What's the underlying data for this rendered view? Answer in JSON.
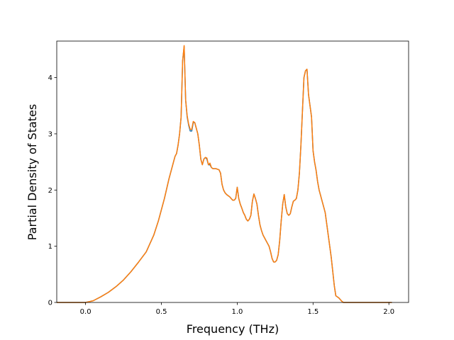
{
  "chart_data": {
    "type": "line",
    "title": "",
    "xlabel": "Frequency (THz)",
    "ylabel": "Partial Density of States",
    "xlim": [
      -0.19,
      2.13
    ],
    "ylim": [
      0,
      4.65
    ],
    "xticks": [
      0.0,
      0.5,
      1.0,
      1.5,
      2.0
    ],
    "xtick_labels": [
      "0.0",
      "0.5",
      "1.0",
      "1.5",
      "2.0"
    ],
    "yticks": [
      0,
      1,
      2,
      3,
      4
    ],
    "ytick_labels": [
      "0",
      "1",
      "2",
      "3",
      "4"
    ],
    "grid": false,
    "legend": "none",
    "series": [
      {
        "color": "#1f77b4",
        "x": [
          -0.19,
          -0.1,
          0.0,
          0.05,
          0.1,
          0.15,
          0.2,
          0.25,
          0.3,
          0.35,
          0.4,
          0.45,
          0.48,
          0.5,
          0.52,
          0.55,
          0.57,
          0.58,
          0.59,
          0.6,
          0.61,
          0.62,
          0.63,
          0.64,
          0.65,
          0.66,
          0.67,
          0.68,
          0.69,
          0.7,
          0.71,
          0.72,
          0.73,
          0.74,
          0.75,
          0.76,
          0.77,
          0.78,
          0.79,
          0.8,
          0.81,
          0.82,
          0.83,
          0.84,
          0.85,
          0.86,
          0.87,
          0.88,
          0.89,
          0.9,
          0.91,
          0.92,
          0.93,
          0.94,
          0.95,
          0.96,
          0.97,
          0.98,
          0.99,
          1.0,
          1.01,
          1.02,
          1.03,
          1.04,
          1.05,
          1.06,
          1.07,
          1.08,
          1.09,
          1.1,
          1.11,
          1.12,
          1.13,
          1.14,
          1.15,
          1.16,
          1.17,
          1.18,
          1.19,
          1.2,
          1.21,
          1.22,
          1.23,
          1.24,
          1.25,
          1.26,
          1.27,
          1.28,
          1.29,
          1.3,
          1.31,
          1.32,
          1.33,
          1.34,
          1.35,
          1.36,
          1.37,
          1.38,
          1.39,
          1.4,
          1.41,
          1.42,
          1.43,
          1.44,
          1.45,
          1.46,
          1.47,
          1.48,
          1.49,
          1.5,
          1.51,
          1.52,
          1.53,
          1.54,
          1.55,
          1.56,
          1.57,
          1.58,
          1.59,
          1.6,
          1.61,
          1.62,
          1.63,
          1.64,
          1.65,
          1.66,
          1.67,
          1.68,
          1.69,
          1.7,
          1.71,
          1.72,
          1.73,
          1.74,
          1.75,
          1.76,
          1.77,
          1.78,
          1.79,
          1.8,
          1.81,
          1.82,
          1.83,
          1.85,
          1.9,
          2.0,
          2.02
        ],
        "y": [
          0,
          0,
          0,
          0.03,
          0.1,
          0.18,
          0.28,
          0.4,
          0.55,
          0.72,
          0.9,
          1.2,
          1.45,
          1.65,
          1.85,
          2.2,
          2.4,
          2.5,
          2.6,
          2.65,
          2.8,
          3.0,
          3.3,
          4.3,
          4.55,
          3.6,
          3.3,
          3.15,
          3.05,
          3.05,
          3.2,
          3.2,
          3.1,
          3.0,
          2.8,
          2.55,
          2.45,
          2.55,
          2.58,
          2.55,
          2.45,
          2.45,
          2.4,
          2.38,
          2.38,
          2.38,
          2.37,
          2.36,
          2.3,
          2.1,
          2.0,
          1.95,
          1.92,
          1.9,
          1.88,
          1.85,
          1.82,
          1.82,
          1.85,
          2.05,
          1.85,
          1.75,
          1.68,
          1.6,
          1.55,
          1.48,
          1.45,
          1.48,
          1.55,
          1.8,
          1.93,
          1.85,
          1.75,
          1.55,
          1.38,
          1.28,
          1.2,
          1.15,
          1.1,
          1.05,
          1.0,
          0.9,
          0.78,
          0.72,
          0.72,
          0.75,
          0.85,
          1.1,
          1.45,
          1.75,
          1.92,
          1.7,
          1.58,
          1.55,
          1.58,
          1.7,
          1.8,
          1.82,
          1.85,
          2.0,
          2.3,
          2.8,
          3.4,
          4.0,
          4.12,
          4.15,
          3.7,
          3.5,
          3.3,
          2.7,
          2.5,
          2.35,
          2.15,
          2.0,
          1.9,
          1.8,
          1.7,
          1.6,
          1.4,
          1.2,
          1.0,
          0.8,
          0.55,
          0.3,
          0.12,
          0.1,
          0.08,
          0.05,
          0.02,
          0.0,
          0,
          0,
          0,
          0,
          0,
          0,
          0,
          0,
          0,
          0,
          0,
          0,
          0,
          0,
          0,
          0,
          0
        ]
      },
      {
        "color": "#ff7f0e",
        "x": [
          -0.19,
          -0.1,
          0.0,
          0.05,
          0.1,
          0.15,
          0.2,
          0.25,
          0.3,
          0.35,
          0.4,
          0.45,
          0.48,
          0.5,
          0.52,
          0.55,
          0.57,
          0.58,
          0.59,
          0.6,
          0.61,
          0.62,
          0.63,
          0.64,
          0.65,
          0.66,
          0.67,
          0.68,
          0.69,
          0.7,
          0.71,
          0.72,
          0.73,
          0.74,
          0.75,
          0.76,
          0.77,
          0.78,
          0.79,
          0.8,
          0.81,
          0.82,
          0.83,
          0.84,
          0.85,
          0.86,
          0.87,
          0.88,
          0.89,
          0.9,
          0.91,
          0.92,
          0.93,
          0.94,
          0.95,
          0.96,
          0.97,
          0.98,
          0.99,
          1.0,
          1.01,
          1.02,
          1.03,
          1.04,
          1.05,
          1.06,
          1.07,
          1.08,
          1.09,
          1.1,
          1.11,
          1.12,
          1.13,
          1.14,
          1.15,
          1.16,
          1.17,
          1.18,
          1.19,
          1.2,
          1.21,
          1.22,
          1.23,
          1.24,
          1.25,
          1.26,
          1.27,
          1.28,
          1.29,
          1.3,
          1.31,
          1.32,
          1.33,
          1.34,
          1.35,
          1.36,
          1.37,
          1.38,
          1.39,
          1.4,
          1.41,
          1.42,
          1.43,
          1.44,
          1.45,
          1.46,
          1.47,
          1.48,
          1.49,
          1.5,
          1.51,
          1.52,
          1.53,
          1.54,
          1.55,
          1.56,
          1.57,
          1.58,
          1.59,
          1.6,
          1.61,
          1.62,
          1.63,
          1.64,
          1.65,
          1.66,
          1.67,
          1.68,
          1.69,
          1.7,
          1.71,
          1.72,
          1.73,
          1.74,
          1.75,
          1.76,
          1.77,
          1.78,
          1.79,
          1.8,
          1.81,
          1.82,
          1.83,
          1.85,
          1.9,
          2.0,
          2.02
        ],
        "y": [
          0,
          0,
          0,
          0.03,
          0.1,
          0.18,
          0.28,
          0.4,
          0.55,
          0.72,
          0.9,
          1.2,
          1.45,
          1.65,
          1.85,
          2.2,
          2.4,
          2.5,
          2.6,
          2.65,
          2.8,
          3.0,
          3.3,
          4.3,
          4.57,
          3.6,
          3.32,
          3.17,
          3.08,
          3.08,
          3.22,
          3.2,
          3.1,
          3.0,
          2.8,
          2.55,
          2.45,
          2.55,
          2.58,
          2.57,
          2.45,
          2.48,
          2.4,
          2.38,
          2.38,
          2.38,
          2.37,
          2.36,
          2.3,
          2.1,
          2.0,
          1.95,
          1.92,
          1.9,
          1.88,
          1.85,
          1.82,
          1.82,
          1.85,
          2.05,
          1.85,
          1.75,
          1.68,
          1.6,
          1.55,
          1.48,
          1.45,
          1.48,
          1.55,
          1.8,
          1.93,
          1.85,
          1.75,
          1.55,
          1.38,
          1.28,
          1.2,
          1.15,
          1.1,
          1.05,
          1.0,
          0.9,
          0.78,
          0.72,
          0.72,
          0.75,
          0.85,
          1.1,
          1.45,
          1.75,
          1.92,
          1.7,
          1.58,
          1.55,
          1.58,
          1.7,
          1.8,
          1.82,
          1.85,
          2.0,
          2.3,
          2.8,
          3.4,
          4.0,
          4.12,
          4.15,
          3.7,
          3.5,
          3.3,
          2.7,
          2.5,
          2.35,
          2.15,
          2.0,
          1.9,
          1.8,
          1.7,
          1.6,
          1.4,
          1.2,
          1.0,
          0.8,
          0.55,
          0.3,
          0.12,
          0.1,
          0.08,
          0.05,
          0.02,
          0.0,
          0,
          0,
          0,
          0,
          0,
          0,
          0,
          0,
          0,
          0,
          0,
          0,
          0,
          0,
          0,
          0,
          0
        ]
      }
    ]
  }
}
